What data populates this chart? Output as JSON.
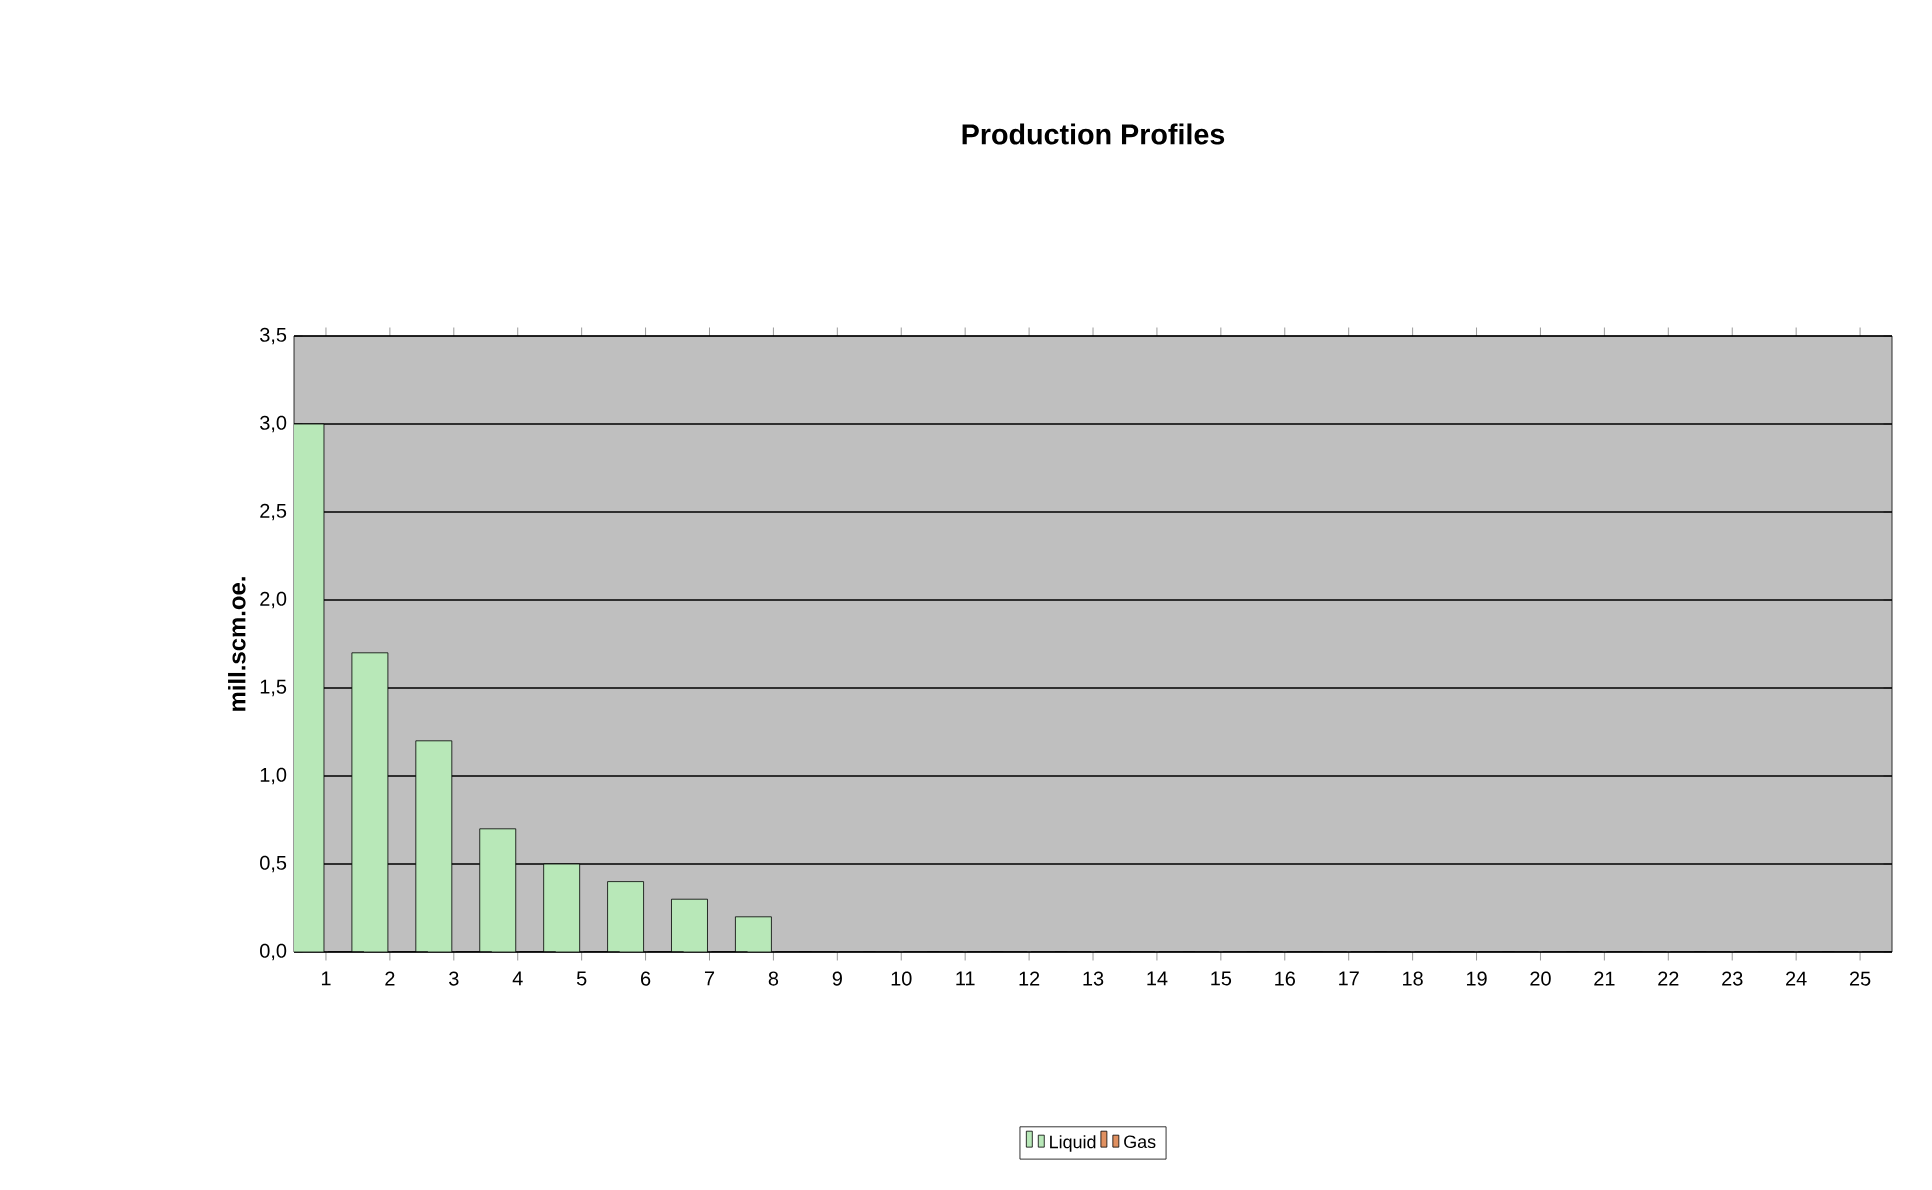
{
  "chart_data": {
    "type": "bar",
    "title": "Production Profiles",
    "ylabel": "mill.scm.oe.",
    "categories": [
      "1",
      "2",
      "3",
      "4",
      "5",
      "6",
      "7",
      "8",
      "9",
      "10",
      "11",
      "12",
      "13",
      "14",
      "15",
      "16",
      "17",
      "18",
      "19",
      "20",
      "21",
      "22",
      "23",
      "24",
      "25"
    ],
    "series": [
      {
        "name": "Liquid",
        "color": "#b8e8b8",
        "values": [
          3.0,
          1.7,
          1.2,
          0.7,
          0.5,
          0.4,
          0.3,
          0.2,
          0,
          0,
          0,
          0,
          0,
          0,
          0,
          0,
          0,
          0,
          0,
          0,
          0,
          0,
          0,
          0,
          0
        ]
      },
      {
        "name": "Gas",
        "color": "#e09060",
        "values": [
          0,
          0,
          0,
          0,
          0,
          0,
          0,
          0,
          0,
          0,
          0,
          0,
          0,
          0,
          0,
          0,
          0,
          0,
          0,
          0,
          0,
          0,
          0,
          0,
          0
        ]
      }
    ],
    "ylim": [
      0,
      3.5
    ],
    "yticks": [
      {
        "value": 0,
        "label": "0,0"
      },
      {
        "value": 0.5,
        "label": "0,5"
      },
      {
        "value": 1,
        "label": "1,0"
      },
      {
        "value": 1.5,
        "label": "1,5"
      },
      {
        "value": 2,
        "label": "2,0"
      },
      {
        "value": 2.5,
        "label": "2,5"
      },
      {
        "value": 3,
        "label": "3,0"
      },
      {
        "value": 3.5,
        "label": "3,5"
      }
    ],
    "grid": "y",
    "legend": "bottom"
  }
}
